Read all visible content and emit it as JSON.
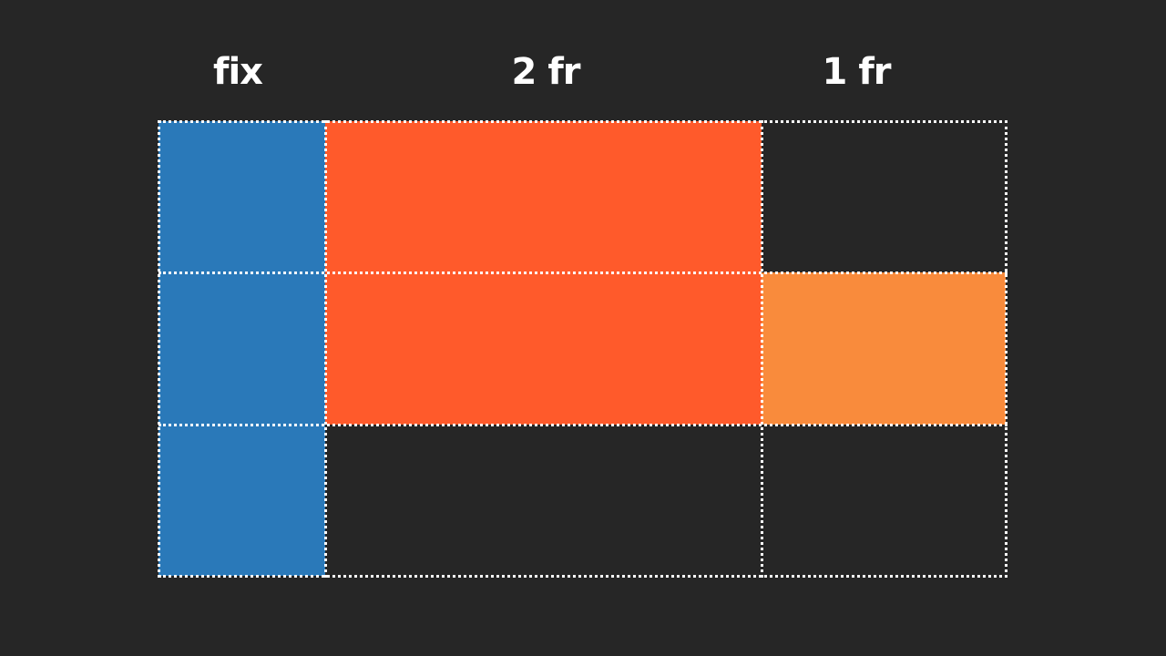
{
  "columns": [
    {
      "label": "fix"
    },
    {
      "label": "2 fr"
    },
    {
      "label": "1 fr"
    }
  ],
  "colors": {
    "background": "#262626",
    "blue_item": "#2a79b9",
    "red_item": "#ff5a2b",
    "orange_item": "#f98b3c",
    "grid_lines": "#ffffff"
  }
}
